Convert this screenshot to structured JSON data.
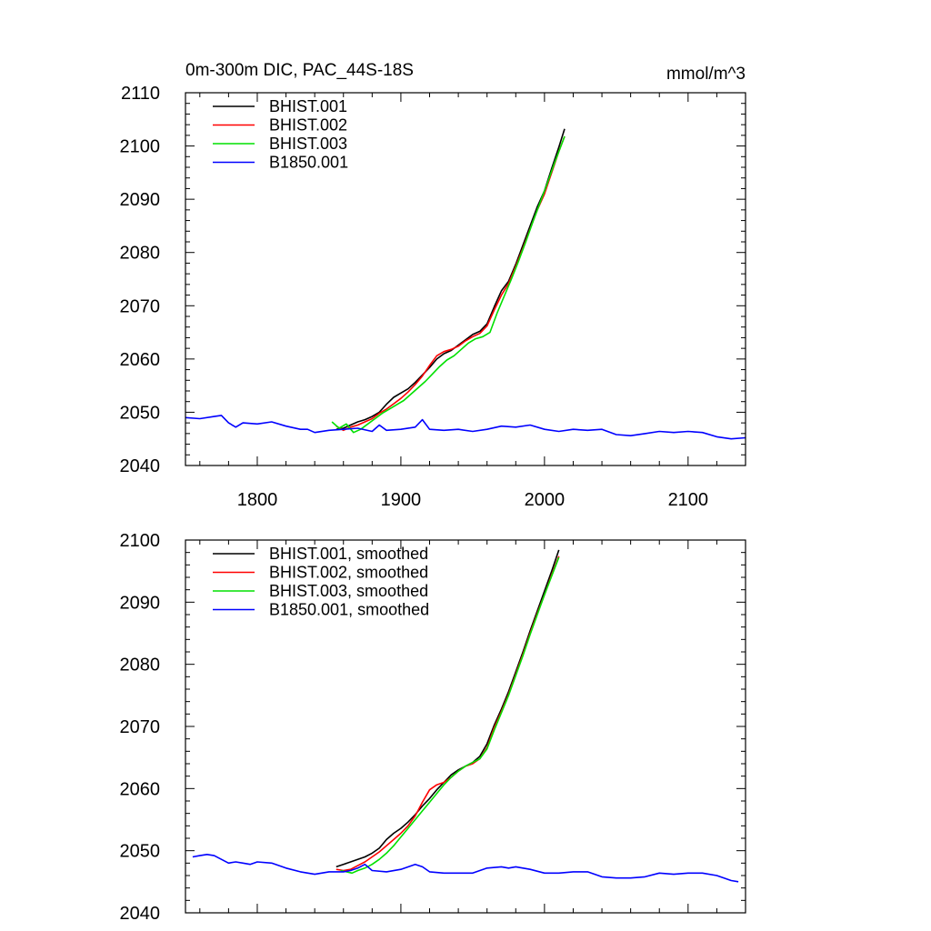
{
  "figure": {
    "title_left": "0m-300m DIC, PAC_44S-18S",
    "title_right": "mmol/m^3"
  },
  "chart_data": [
    {
      "type": "line",
      "title": "0m-300m DIC, PAC_44S-18S",
      "units": "mmol/m^3",
      "xlim": [
        1750,
        2140
      ],
      "ylim": [
        2040,
        2110
      ],
      "x_ticks": [
        1800,
        1900,
        2000,
        2100
      ],
      "y_ticks": [
        2040,
        2050,
        2060,
        2070,
        2080,
        2090,
        2100,
        2110
      ],
      "x_tick_labels": [
        "1800",
        "1900",
        "2000",
        "2100"
      ],
      "y_tick_labels": [
        "2040",
        "2050",
        "2060",
        "2070",
        "2080",
        "2090",
        "2100",
        "2110"
      ],
      "legend_position": "top-left",
      "series": [
        {
          "name": "BHIST.001",
          "color": "#000000",
          "x": [
            1855,
            1860,
            1865,
            1870,
            1875,
            1880,
            1885,
            1890,
            1895,
            1900,
            1905,
            1910,
            1915,
            1920,
            1925,
            1930,
            1935,
            1940,
            1945,
            1950,
            1955,
            1960,
            1965,
            1970,
            1975,
            1980,
            1985,
            1990,
            1995,
            2000,
            2005,
            2010,
            2014
          ],
          "y": [
            2046.8,
            2047.0,
            2047.6,
            2048.2,
            2048.6,
            2049.2,
            2050.0,
            2051.5,
            2052.8,
            2053.6,
            2054.4,
            2055.6,
            2057.0,
            2058.4,
            2060.0,
            2061.0,
            2061.6,
            2062.6,
            2063.6,
            2064.6,
            2065.2,
            2066.6,
            2069.8,
            2072.8,
            2074.6,
            2077.8,
            2081.4,
            2085.0,
            2088.6,
            2091.6,
            2095.8,
            2099.8,
            2103.2
          ]
        },
        {
          "name": "BHIST.002",
          "color": "#ff0000",
          "x": [
            1855,
            1860,
            1865,
            1870,
            1875,
            1880,
            1885,
            1890,
            1895,
            1900,
            1905,
            1910,
            1915,
            1920,
            1925,
            1930,
            1935,
            1940,
            1945,
            1950,
            1955,
            1960,
            1965,
            1970,
            1975,
            1980,
            1985,
            1990,
            1995,
            2000,
            2005,
            2010,
            2014
          ],
          "y": [
            2047.4,
            2046.6,
            2047.2,
            2047.6,
            2048.2,
            2048.8,
            2049.8,
            2050.6,
            2051.6,
            2052.6,
            2053.8,
            2055.2,
            2056.8,
            2058.8,
            2060.6,
            2061.4,
            2061.8,
            2062.4,
            2063.4,
            2064.2,
            2064.8,
            2066.2,
            2069.2,
            2072.0,
            2074.2,
            2077.4,
            2080.8,
            2084.4,
            2088.0,
            2091.0,
            2095.0,
            2099.0,
            2101.8
          ]
        },
        {
          "name": "BHIST.003",
          "color": "#00e000",
          "x": [
            1852,
            1857,
            1862,
            1867,
            1872,
            1877,
            1882,
            1887,
            1892,
            1897,
            1902,
            1907,
            1912,
            1917,
            1922,
            1927,
            1932,
            1937,
            1942,
            1947,
            1952,
            1957,
            1962,
            1967,
            1972,
            1977,
            1982,
            1987,
            1992,
            1997,
            2002,
            2007,
            2014
          ],
          "y": [
            2048.2,
            2047.0,
            2047.8,
            2046.2,
            2046.8,
            2047.8,
            2048.8,
            2049.8,
            2050.6,
            2051.4,
            2052.2,
            2053.4,
            2054.6,
            2055.8,
            2057.2,
            2058.6,
            2059.8,
            2060.6,
            2061.8,
            2063.0,
            2063.8,
            2064.2,
            2065.0,
            2068.6,
            2071.8,
            2075.0,
            2078.4,
            2082.0,
            2085.8,
            2089.4,
            2093.0,
            2096.8,
            2101.8
          ]
        },
        {
          "name": "B1850.001",
          "color": "#0000ff",
          "x": [
            1750,
            1760,
            1770,
            1775,
            1780,
            1785,
            1790,
            1800,
            1810,
            1820,
            1830,
            1835,
            1840,
            1850,
            1860,
            1870,
            1880,
            1885,
            1890,
            1900,
            1910,
            1915,
            1920,
            1930,
            1940,
            1950,
            1960,
            1970,
            1980,
            1990,
            2000,
            2010,
            2020,
            2030,
            2040,
            2050,
            2060,
            2070,
            2080,
            2090,
            2100,
            2110,
            2120,
            2130,
            2140
          ],
          "y": [
            2049.0,
            2048.8,
            2049.2,
            2049.4,
            2048.0,
            2047.2,
            2048.0,
            2047.8,
            2048.2,
            2047.4,
            2046.8,
            2046.8,
            2046.2,
            2046.6,
            2046.8,
            2047.0,
            2046.4,
            2047.6,
            2046.6,
            2046.8,
            2047.2,
            2048.6,
            2046.8,
            2046.6,
            2046.8,
            2046.4,
            2046.8,
            2047.4,
            2047.2,
            2047.6,
            2046.8,
            2046.4,
            2046.8,
            2046.6,
            2046.8,
            2045.8,
            2045.6,
            2046.0,
            2046.4,
            2046.2,
            2046.4,
            2046.2,
            2045.4,
            2045.0,
            2045.2
          ]
        }
      ]
    },
    {
      "type": "line",
      "xlim": [
        1750,
        2140
      ],
      "ylim": [
        2040,
        2100
      ],
      "x_ticks": [
        1800,
        1900,
        2000,
        2100
      ],
      "y_ticks": [
        2040,
        2050,
        2060,
        2070,
        2080,
        2090,
        2100
      ],
      "y_tick_labels": [
        "2040",
        "2050",
        "2060",
        "2070",
        "2080",
        "2090",
        "2100"
      ],
      "legend_position": "top-left",
      "series": [
        {
          "name": "BHIST.001, smoothed",
          "color": "#000000",
          "x": [
            1855,
            1860,
            1865,
            1870,
            1875,
            1880,
            1885,
            1890,
            1895,
            1900,
            1905,
            1910,
            1915,
            1920,
            1925,
            1930,
            1935,
            1940,
            1945,
            1950,
            1955,
            1960,
            1965,
            1970,
            1975,
            1980,
            1985,
            1990,
            1995,
            2000,
            2005,
            2010
          ],
          "y": [
            2047.4,
            2047.8,
            2048.2,
            2048.6,
            2049.0,
            2049.6,
            2050.4,
            2051.8,
            2052.8,
            2053.6,
            2054.6,
            2055.8,
            2057.2,
            2058.4,
            2059.8,
            2061.0,
            2062.2,
            2063.0,
            2063.6,
            2064.2,
            2065.2,
            2067.2,
            2070.2,
            2072.8,
            2075.6,
            2078.8,
            2082.0,
            2085.4,
            2088.6,
            2091.8,
            2095.0,
            2098.4
          ]
        },
        {
          "name": "BHIST.002, smoothed",
          "color": "#ff0000",
          "x": [
            1855,
            1860,
            1865,
            1870,
            1875,
            1880,
            1885,
            1890,
            1895,
            1900,
            1905,
            1910,
            1915,
            1920,
            1925,
            1930,
            1935,
            1940,
            1945,
            1950,
            1955,
            1960,
            1965,
            1970,
            1975,
            1980,
            1985,
            1990,
            1995,
            2000,
            2005,
            2010
          ],
          "y": [
            2047.0,
            2046.8,
            2047.0,
            2047.6,
            2048.2,
            2049.0,
            2049.8,
            2050.8,
            2051.8,
            2052.8,
            2054.0,
            2055.6,
            2057.8,
            2059.8,
            2060.6,
            2061.0,
            2061.8,
            2062.8,
            2063.6,
            2064.0,
            2064.8,
            2066.6,
            2069.8,
            2072.4,
            2075.2,
            2078.4,
            2081.6,
            2085.0,
            2088.2,
            2091.2,
            2094.4,
            2097.4
          ]
        },
        {
          "name": "BHIST.003, smoothed",
          "color": "#00e000",
          "x": [
            1858,
            1862,
            1866,
            1870,
            1875,
            1880,
            1885,
            1890,
            1895,
            1900,
            1905,
            1910,
            1915,
            1920,
            1925,
            1930,
            1935,
            1940,
            1945,
            1950,
            1955,
            1960,
            1965,
            1970,
            1975,
            1980,
            1985,
            1990,
            1995,
            2000,
            2005,
            2010
          ],
          "y": [
            2046.8,
            2046.6,
            2046.4,
            2046.8,
            2047.2,
            2047.8,
            2048.6,
            2049.6,
            2050.8,
            2052.2,
            2053.6,
            2055.0,
            2056.4,
            2057.8,
            2059.2,
            2060.6,
            2061.8,
            2062.8,
            2063.6,
            2064.2,
            2064.8,
            2066.4,
            2069.4,
            2072.2,
            2075.0,
            2078.2,
            2081.4,
            2084.8,
            2088.0,
            2091.2,
            2094.2,
            2097.2
          ]
        },
        {
          "name": "B1850.001, smoothed",
          "color": "#0000ff",
          "x": [
            1755,
            1760,
            1765,
            1770,
            1775,
            1780,
            1785,
            1790,
            1795,
            1800,
            1810,
            1820,
            1830,
            1840,
            1850,
            1860,
            1865,
            1870,
            1875,
            1880,
            1890,
            1900,
            1910,
            1915,
            1920,
            1930,
            1940,
            1950,
            1960,
            1970,
            1975,
            1980,
            1990,
            2000,
            2010,
            2020,
            2030,
            2040,
            2050,
            2060,
            2070,
            2080,
            2090,
            2100,
            2110,
            2120,
            2130,
            2135
          ],
          "y": [
            2049.0,
            2049.2,
            2049.4,
            2049.2,
            2048.6,
            2048.0,
            2048.2,
            2048.0,
            2047.8,
            2048.2,
            2048.0,
            2047.2,
            2046.6,
            2046.2,
            2046.6,
            2046.6,
            2046.8,
            2047.2,
            2047.8,
            2046.8,
            2046.6,
            2047.0,
            2047.8,
            2047.4,
            2046.6,
            2046.4,
            2046.4,
            2046.4,
            2047.2,
            2047.4,
            2047.2,
            2047.4,
            2047.0,
            2046.4,
            2046.4,
            2046.6,
            2046.6,
            2045.8,
            2045.6,
            2045.6,
            2045.8,
            2046.4,
            2046.2,
            2046.4,
            2046.4,
            2046.0,
            2045.2,
            2045.0
          ]
        }
      ]
    }
  ]
}
